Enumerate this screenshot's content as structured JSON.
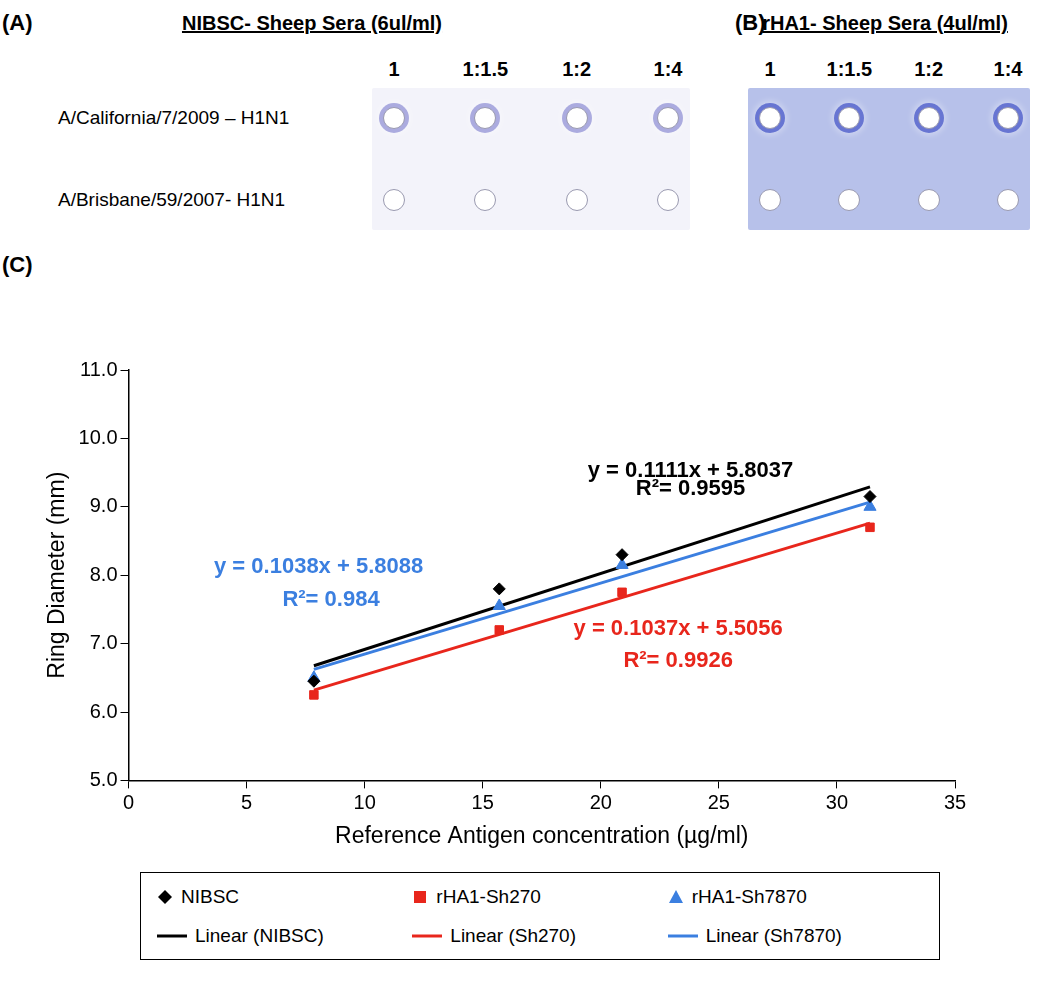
{
  "panels": [
    {
      "label": "(A)",
      "title": "NIBSC- Sheep Sera (6ul/ml)",
      "columns": [
        "1",
        "1:1.5",
        "1:2",
        "1:4"
      ],
      "row_labels": [
        "A/California/7/2009 – H1N1",
        "A/Brisbane/59/2007- H1N1"
      ]
    },
    {
      "label": "(B)",
      "title": "rHA1- Sheep Sera (4ul/ml)",
      "columns": [
        "1",
        "1:1.5",
        "1:2",
        "1:4"
      ]
    }
  ],
  "chart_data": {
    "type": "scatter",
    "title": "(C)",
    "x_label": "Reference Antigen concentration (µg/ml)",
    "y_label": "Ring Diameter (mm)",
    "xlim": [
      0,
      35
    ],
    "xticks": [
      0,
      5,
      10,
      15,
      20,
      25,
      30,
      35
    ],
    "ylim": [
      5,
      11
    ],
    "yticks": [
      {
        "value": 5,
        "label": "5.0"
      },
      {
        "value": 6,
        "label": "6.0"
      },
      {
        "value": 7,
        "label": "7.0"
      },
      {
        "value": 8,
        "label": "8.0"
      },
      {
        "value": 9,
        "label": "9.0"
      },
      {
        "value": 10,
        "label": "10.0"
      },
      {
        "value": 11,
        "label": "11.0"
      }
    ],
    "grid": false,
    "legend": "bottom",
    "x": [
      7.85,
      15.7,
      20.9,
      31.4
    ],
    "series": [
      {
        "name": "NIBSC",
        "color": "#000000",
        "marker": "diamond",
        "values": [
          6.45,
          7.8,
          8.3,
          9.15
        ],
        "fit": {
          "name": "Linear (NIBSC)",
          "slope": 0.1111,
          "intercept": 5.8037,
          "equation": "y = 0.1111x + 5.8037",
          "r2": "R²= 0.9595"
        }
      },
      {
        "name": "rHA1-Sh270",
        "color": "#e8261c",
        "marker": "square",
        "values": [
          6.25,
          7.2,
          7.75,
          8.7
        ],
        "fit": {
          "name": "Linear (Sh270)",
          "slope": 0.1037,
          "intercept": 5.5056,
          "equation": "y = 0.1037x + 5.5056",
          "r2": "R²= 0.9926"
        }
      },
      {
        "name": "rHA1-Sh7870",
        "color": "#3b7fe0",
        "marker": "triangle",
        "values": [
          6.5,
          7.55,
          8.15,
          9.0
        ],
        "fit": {
          "name": "Linear (Sh7870)",
          "slope": 0.1038,
          "intercept": 5.8088,
          "equation": "y = 0.1038x + 5.8088",
          "r2": "R²= 0.984"
        }
      }
    ]
  }
}
